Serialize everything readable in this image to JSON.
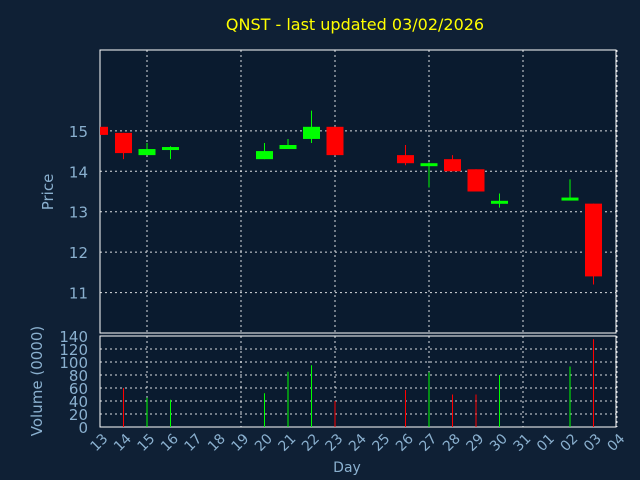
{
  "chart_data": {
    "type": "candlestick",
    "title": "QNST - last updated 03/02/2026",
    "price_panel": {
      "ylabel": "Price",
      "ylim": [
        10,
        17
      ],
      "yticks": [
        11,
        12,
        13,
        14,
        15
      ]
    },
    "volume_panel": {
      "ylabel": "Volume (0000)",
      "ylim": [
        0,
        140
      ],
      "yticks": [
        0,
        20,
        40,
        60,
        80,
        100,
        120,
        140
      ]
    },
    "xlabel": "Day",
    "xticks": [
      "13",
      "14",
      "15",
      "16",
      "17",
      "18",
      "19",
      "20",
      "21",
      "22",
      "23",
      "24",
      "25",
      "26",
      "27",
      "28",
      "29",
      "30",
      "31",
      "01",
      "02",
      "03",
      "04"
    ],
    "grid": true,
    "up_color": "#00ff00",
    "down_color": "#ff0000",
    "candles": [
      {
        "day": "13",
        "open": 15.1,
        "high": 15.1,
        "low": 14.9,
        "close": 14.9,
        "volume": 0
      },
      {
        "day": "14",
        "open": 14.95,
        "high": 14.95,
        "low": 14.3,
        "close": 14.45,
        "volume": 60
      },
      {
        "day": "15",
        "open": 14.4,
        "high": 14.7,
        "low": 14.4,
        "close": 14.55,
        "volume": 45
      },
      {
        "day": "16",
        "open": 14.55,
        "high": 14.62,
        "low": 14.3,
        "close": 14.6,
        "volume": 42
      },
      {
        "day": "20",
        "open": 14.3,
        "high": 14.7,
        "low": 14.3,
        "close": 14.5,
        "volume": 52
      },
      {
        "day": "21",
        "open": 14.55,
        "high": 14.8,
        "low": 14.55,
        "close": 14.65,
        "volume": 85
      },
      {
        "day": "22",
        "open": 14.8,
        "high": 15.5,
        "low": 14.7,
        "close": 15.1,
        "volume": 95
      },
      {
        "day": "23",
        "open": 15.1,
        "high": 15.1,
        "low": 14.4,
        "close": 14.4,
        "volume": 40
      },
      {
        "day": "26",
        "open": 14.4,
        "high": 14.65,
        "low": 14.15,
        "close": 14.2,
        "volume": 57
      },
      {
        "day": "27",
        "open": 14.15,
        "high": 14.22,
        "low": 13.6,
        "close": 14.2,
        "volume": 84
      },
      {
        "day": "28",
        "open": 14.3,
        "high": 14.4,
        "low": 14.0,
        "close": 14.0,
        "volume": 50
      },
      {
        "day": "29",
        "open": 14.05,
        "high": 14.05,
        "low": 13.5,
        "close": 13.5,
        "volume": 50
      },
      {
        "day": "30",
        "open": 13.25,
        "high": 13.45,
        "low": 13.1,
        "close": 13.27,
        "volume": 80
      },
      {
        "day": "02",
        "open": 13.3,
        "high": 13.8,
        "low": 13.3,
        "close": 13.35,
        "volume": 93
      },
      {
        "day": "03",
        "open": 13.2,
        "high": 13.2,
        "low": 11.2,
        "close": 11.4,
        "volume": 135
      }
    ]
  }
}
